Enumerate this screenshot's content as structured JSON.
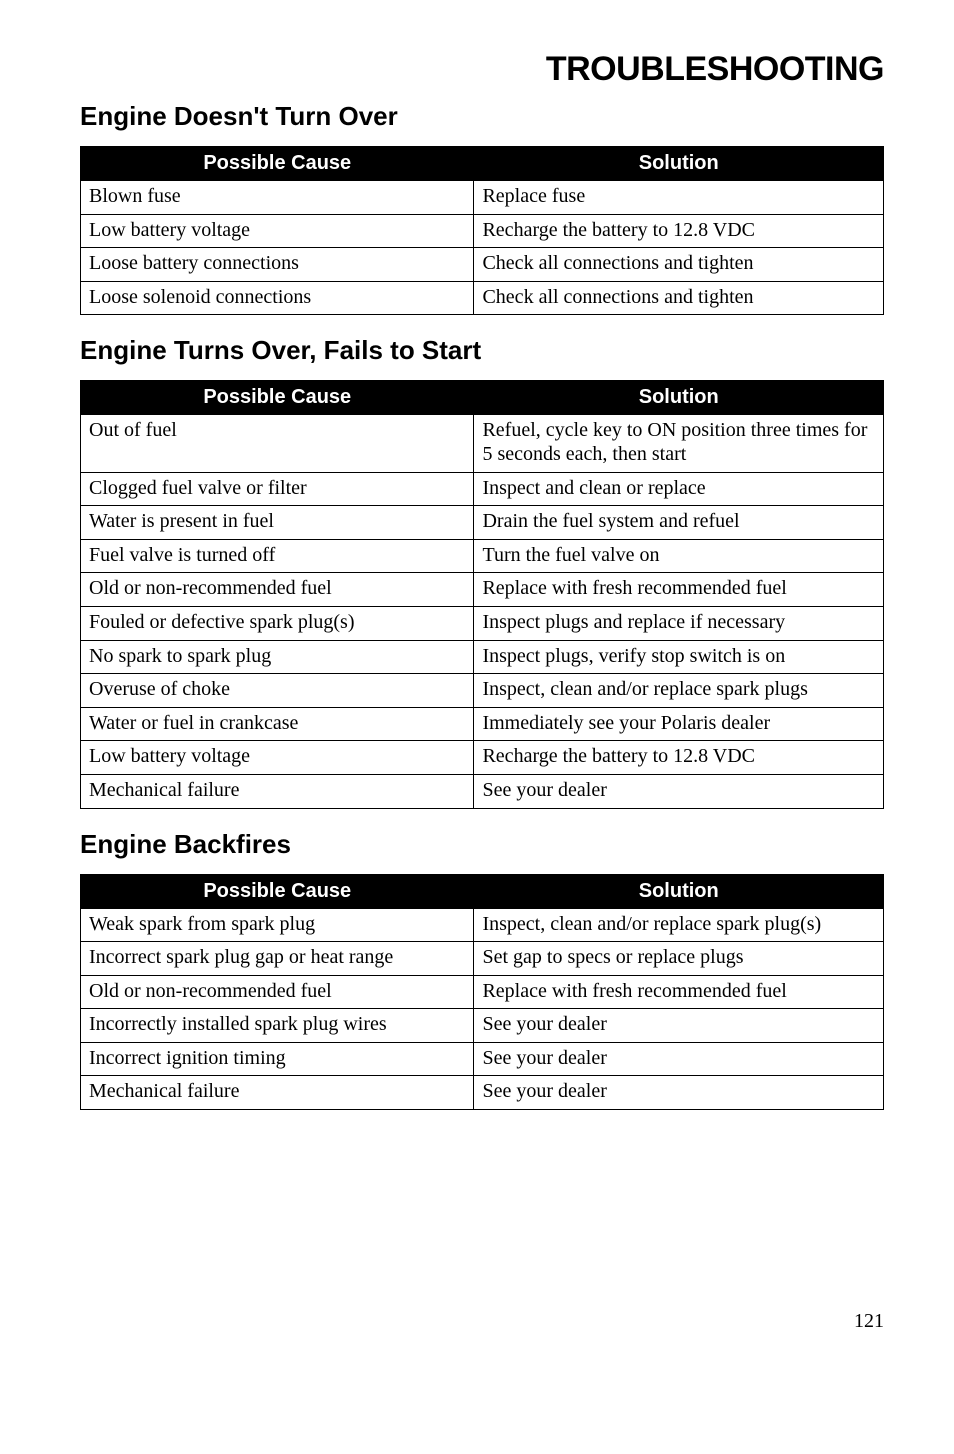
{
  "page_title": "TROUBLESHOOTING",
  "sections": [
    {
      "title": "Engine Doesn't Turn Over",
      "headers": {
        "cause": "Possible Cause",
        "solution": "Solution"
      },
      "rows": [
        {
          "cause": "Blown fuse",
          "solution": "Replace fuse"
        },
        {
          "cause": "Low battery voltage",
          "solution": "Recharge the battery to 12.8 VDC"
        },
        {
          "cause": "Loose battery connections",
          "solution": "Check all connections and tighten"
        },
        {
          "cause": "Loose solenoid connections",
          "solution": "Check all connections and tighten"
        }
      ]
    },
    {
      "title": "Engine Turns Over, Fails to Start",
      "headers": {
        "cause": "Possible Cause",
        "solution": "Solution"
      },
      "rows": [
        {
          "cause": "Out of fuel",
          "solution": "Refuel, cycle key to ON position three times for 5 seconds each, then start"
        },
        {
          "cause": "Clogged fuel valve or filter",
          "solution": "Inspect and clean or replace"
        },
        {
          "cause": "Water is present in fuel",
          "solution": "Drain the fuel system and refuel"
        },
        {
          "cause": "Fuel valve is turned off",
          "solution": "Turn the fuel valve on"
        },
        {
          "cause": "Old or non-recommended fuel",
          "solution": "Replace with fresh recommended fuel"
        },
        {
          "cause": "Fouled or defective spark plug(s)",
          "solution": "Inspect plugs and replace if necessary"
        },
        {
          "cause": "No spark to spark plug",
          "solution": "Inspect plugs, verify stop switch is on"
        },
        {
          "cause": "Overuse of choke",
          "solution": "Inspect, clean and/or replace spark plugs"
        },
        {
          "cause": "Water or fuel in crankcase",
          "solution": "Immediately see your Polaris dealer"
        },
        {
          "cause": "Low battery voltage",
          "solution": "Recharge the battery to 12.8 VDC"
        },
        {
          "cause": "Mechanical failure",
          "solution": "See your dealer"
        }
      ]
    },
    {
      "title": "Engine Backfires",
      "headers": {
        "cause": "Possible Cause",
        "solution": "Solution"
      },
      "rows": [
        {
          "cause": "Weak spark from spark plug",
          "solution": "Inspect, clean and/or replace spark plug(s)"
        },
        {
          "cause": "Incorrect spark plug gap or heat range",
          "solution": "Set gap to specs or replace plugs"
        },
        {
          "cause": "Old or non-recommended fuel",
          "solution": "Replace with fresh recommended fuel"
        },
        {
          "cause": "Incorrectly installed spark plug wires",
          "solution": "See your dealer"
        },
        {
          "cause": "Incorrect ignition timing",
          "solution": "See your dealer"
        },
        {
          "cause": "Mechanical failure",
          "solution": "See your dealer"
        }
      ]
    }
  ],
  "page_number": "121"
}
